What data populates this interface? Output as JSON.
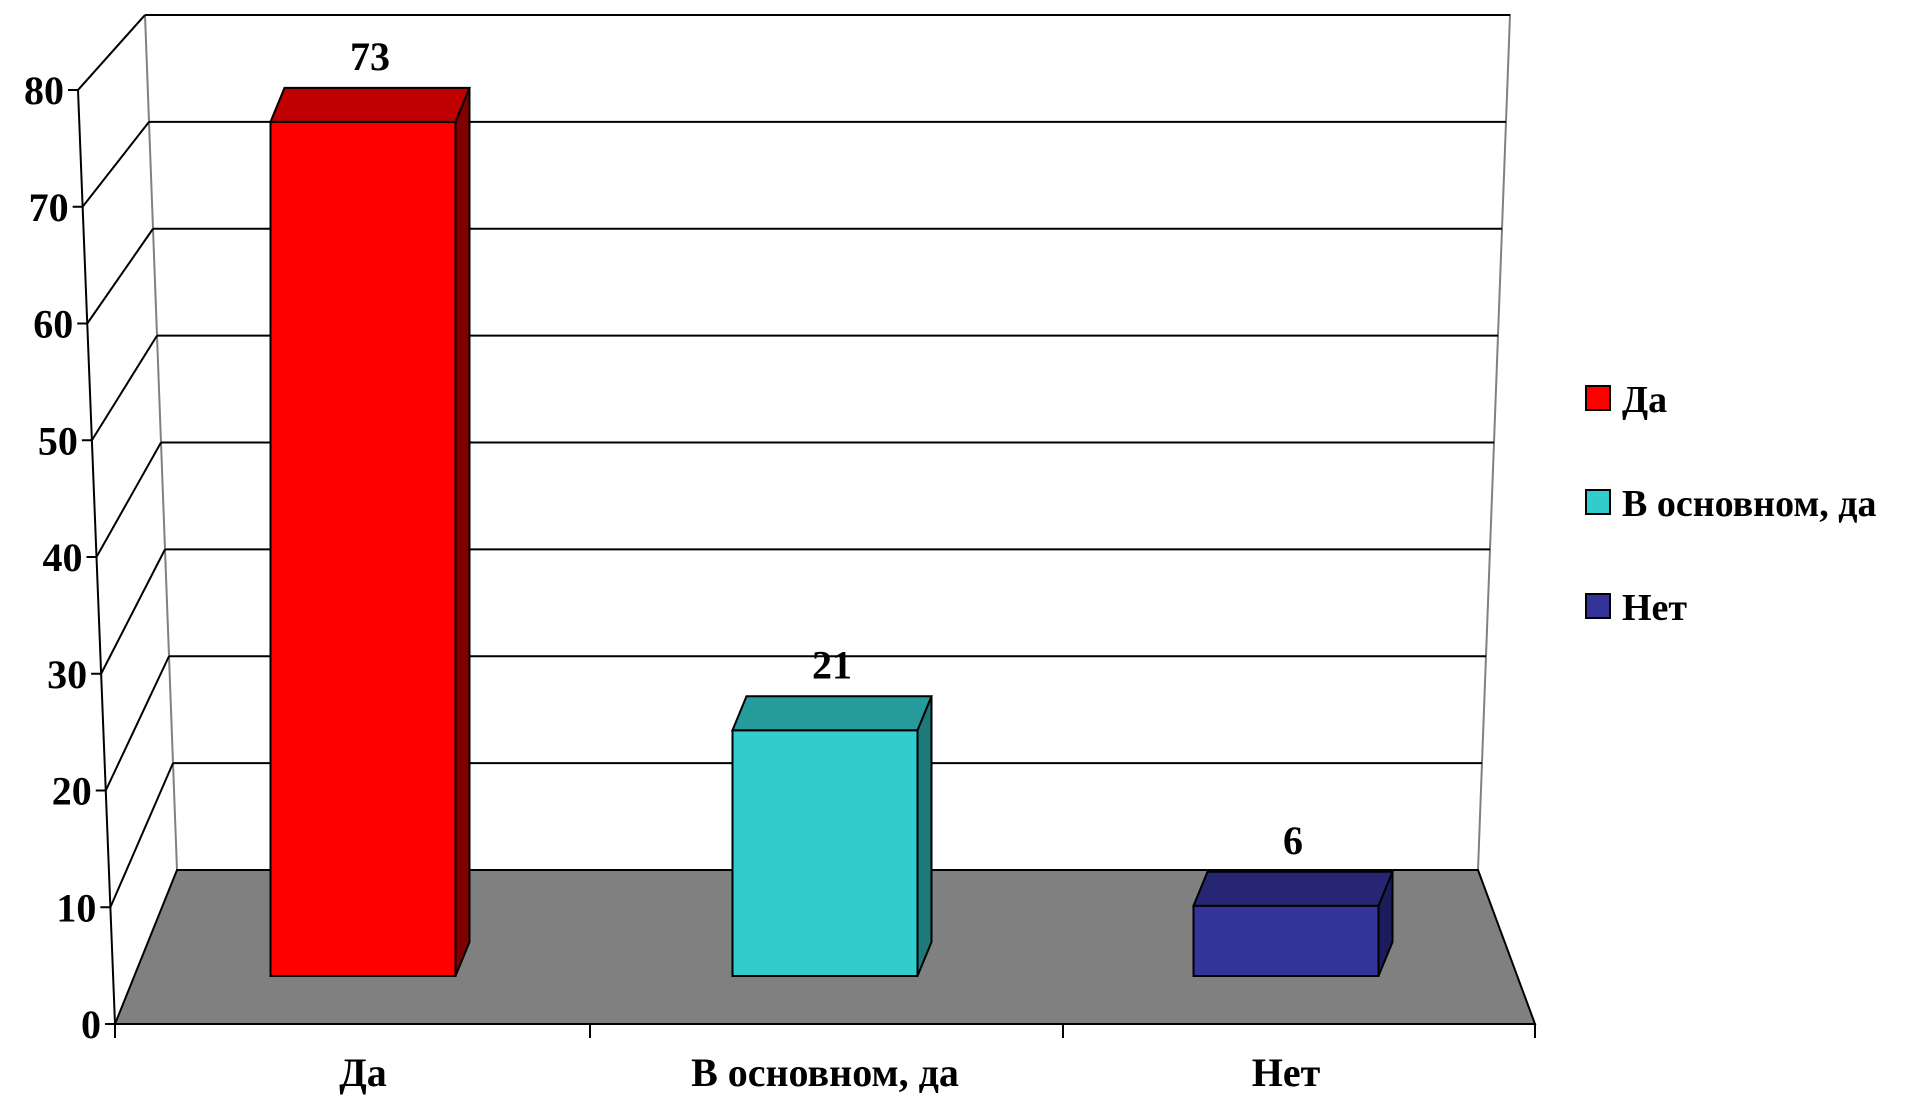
{
  "chart_data": {
    "type": "bar",
    "categories": [
      "Да",
      "В основном, да",
      "Нет"
    ],
    "values": [
      73,
      21,
      6
    ],
    "ylim": [
      0,
      80
    ],
    "yticks": [
      0,
      10,
      20,
      30,
      40,
      50,
      60,
      70,
      80
    ],
    "grid": true,
    "legend": "right",
    "legend_entries": [
      "Да",
      "В основном, да",
      "Нет"
    ],
    "colors": [
      {
        "front": "#ff0000",
        "top": "#c00000",
        "side": "#800000"
      },
      {
        "front": "#33cccc",
        "top": "#269b9b",
        "side": "#1e7a7a"
      },
      {
        "front": "#333399",
        "top": "#262673",
        "side": "#1c1c5a"
      }
    ],
    "floor_color": "#808080"
  }
}
